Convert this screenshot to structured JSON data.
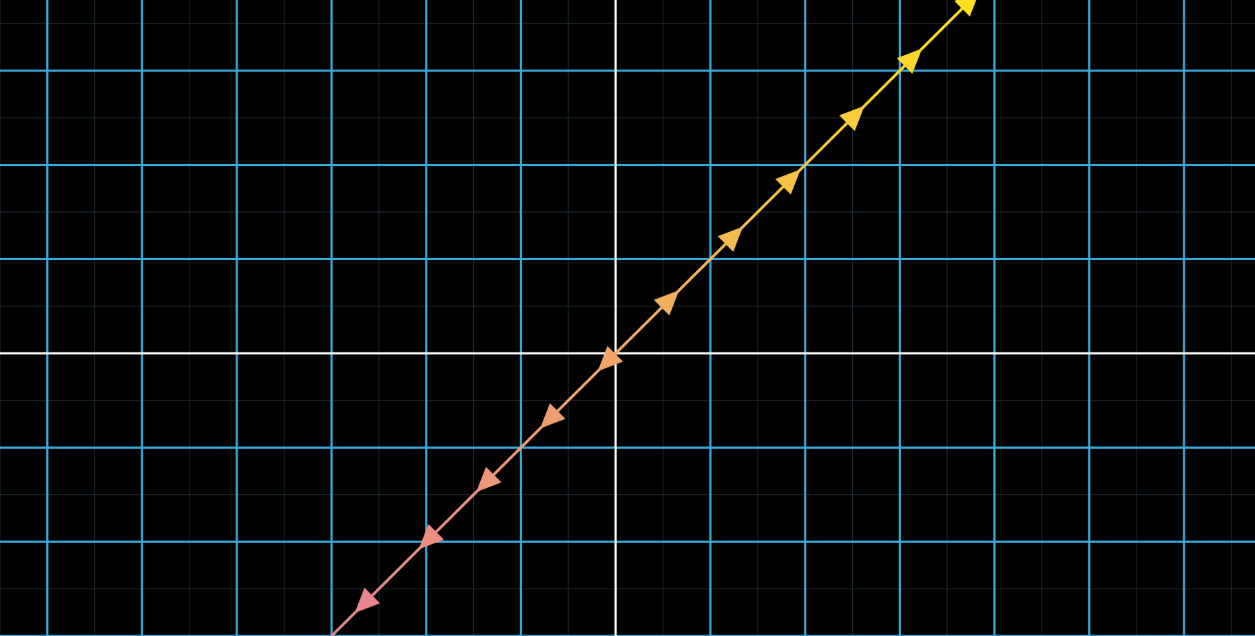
{
  "scene": {
    "type": "linear-transformation-grid",
    "description_visible_text": "",
    "background_color": "#000000",
    "grid_line_color": "#3aa8d8",
    "minor_grid_color": "#1c2a33",
    "axis_color": "#ffffff",
    "x_range": [
      -6.5,
      6.75
    ],
    "y_range": [
      -3.0,
      3.75
    ],
    "grid_step": 1,
    "minor_step": 0.5
  },
  "vector_line": {
    "start": [
      -3,
      -3
    ],
    "end": [
      3.75,
      3.75
    ],
    "color_start": "#e8828f",
    "color_mid": "#f0a868",
    "color_end": "#ffe020",
    "arrow_count": 11,
    "arrow_params": [
      0.05,
      0.15,
      0.24,
      0.34,
      0.43,
      0.53,
      0.63,
      0.72,
      0.82,
      0.91,
      1.0
    ]
  }
}
